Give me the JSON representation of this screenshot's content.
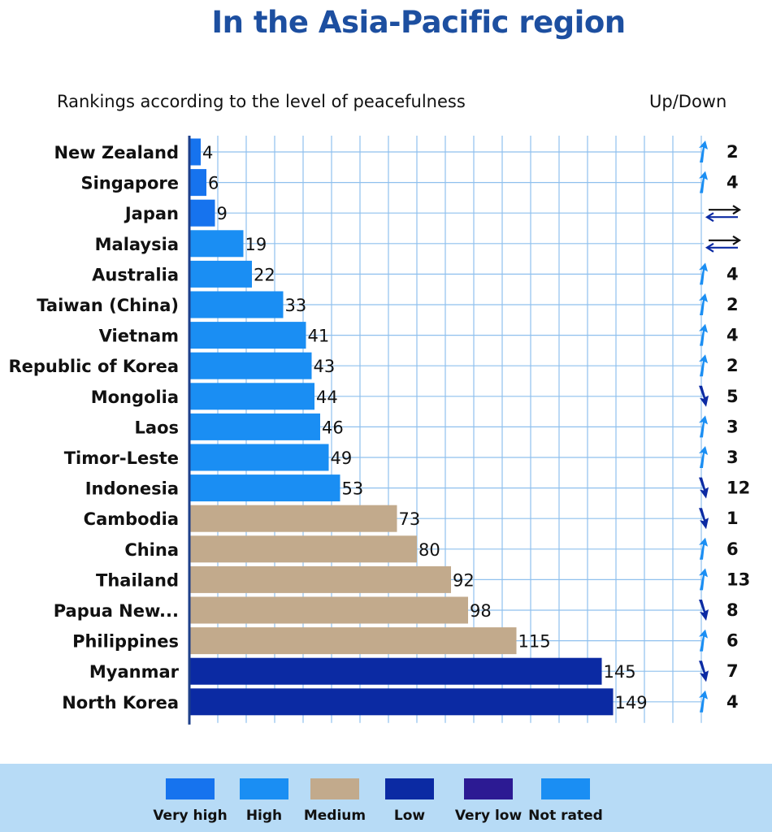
{
  "header": {
    "title": "In the Asia-Pacific region",
    "subtitle": "Rankings according to the level of peacefulness",
    "updown_label": "Up/Down"
  },
  "chart_data": {
    "type": "bar",
    "orientation": "horizontal",
    "title": "In the Asia-Pacific region",
    "subtitle": "Rankings according to the level of peacefulness",
    "categories": [
      "New Zealand",
      "Singapore",
      "Japan",
      "Malaysia",
      "Australia",
      "Taiwan (China)",
      "Vietnam",
      "Republic of Korea",
      "Mongolia",
      "Laos",
      "Timor-Leste",
      "Indonesia",
      "Cambodia",
      "China",
      "Thailand",
      "Papua New...",
      "Philippines",
      "Myanmar",
      "North Korea"
    ],
    "values": [
      4,
      6,
      9,
      19,
      22,
      33,
      41,
      43,
      44,
      46,
      49,
      53,
      73,
      80,
      92,
      98,
      115,
      145,
      149
    ],
    "levels": [
      "Very high",
      "Very high",
      "Very high",
      "High",
      "High",
      "High",
      "High",
      "High",
      "High",
      "High",
      "High",
      "High",
      "Medium",
      "Medium",
      "Medium",
      "Medium",
      "Medium",
      "Low",
      "Low"
    ],
    "highlight": "Vietnam",
    "change_header": "Up/Down",
    "change_direction": [
      "up",
      "up",
      "same",
      "same",
      "up",
      "up",
      "up",
      "up",
      "down",
      "up",
      "up",
      "down",
      "down",
      "up",
      "up",
      "down",
      "up",
      "down",
      "up"
    ],
    "change_values": [
      "2",
      "4",
      "",
      "",
      "4",
      "2",
      "4",
      "2",
      "5",
      "3",
      "3",
      "12",
      "1",
      "6",
      "13",
      "8",
      "6",
      "7",
      "4"
    ],
    "xlim": [
      0,
      160
    ],
    "grid": true,
    "legend": [
      {
        "label": "Very high",
        "color": "#1673ee"
      },
      {
        "label": "High",
        "color": "#1a8ef3"
      },
      {
        "label": "Medium",
        "color": "#c2aa8c"
      },
      {
        "label": "Low",
        "color": "#0b2aa3"
      },
      {
        "label": "Very low",
        "color": "#2c1a93"
      },
      {
        "label": "Not rated",
        "color": "#1a8ef3"
      }
    ],
    "legend_position": "bottom"
  },
  "colors": {
    "title": "#1d4fa0",
    "highlight": "#1a8ef3",
    "grid": "#8fc0ee",
    "axis": "#1d3f8a",
    "arrow_up": "#1a8ef3",
    "arrow_down": "#0b2aa3"
  }
}
